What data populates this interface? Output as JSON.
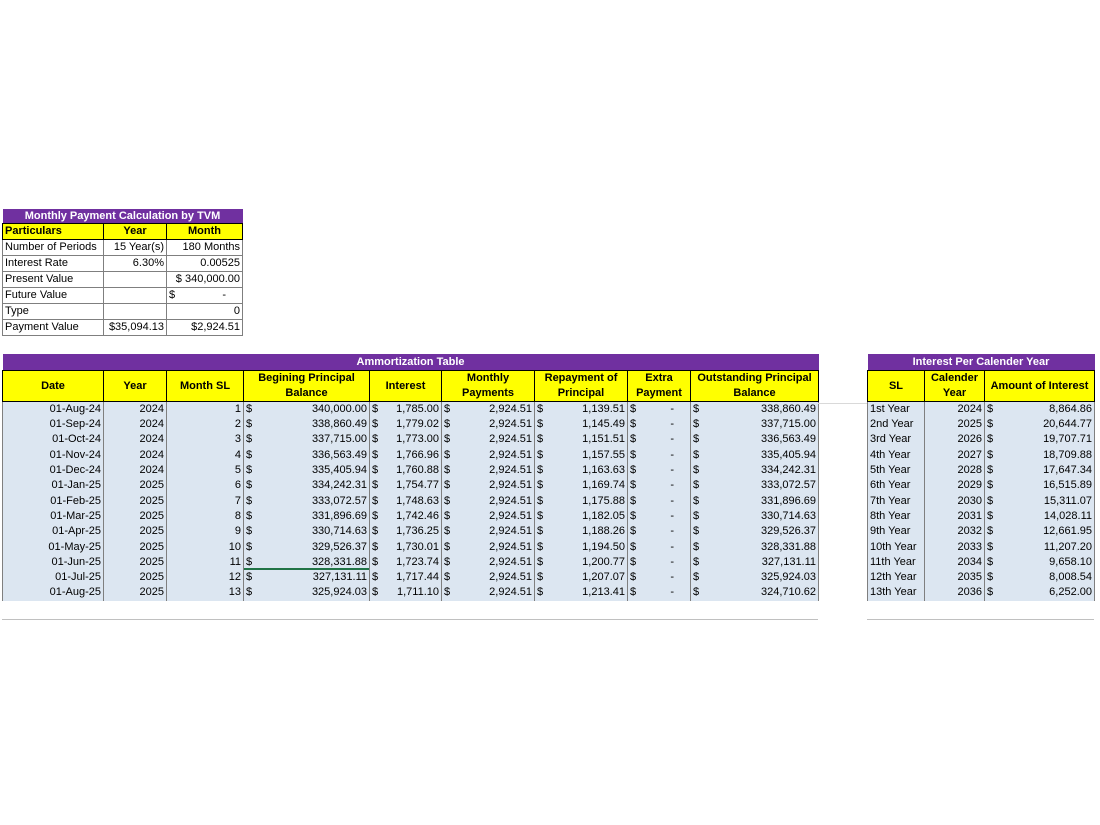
{
  "tvm": {
    "title": "Monthly Payment Calculation by TVM",
    "headers": [
      "Particulars",
      "Year",
      "Month"
    ],
    "rows": [
      {
        "label": "Number of Periods",
        "year": "15 Year(s)",
        "month": "180 Months"
      },
      {
        "label": "Interest Rate",
        "year": "6.30%",
        "month": "0.00525"
      },
      {
        "label": "Present Value",
        "year": "",
        "month": "$ 340,000.00"
      },
      {
        "label": "Future Value",
        "year": "",
        "month_sym": "$",
        "month": "-"
      },
      {
        "label": "Type",
        "year": "",
        "month": "0"
      },
      {
        "label": "Payment Value",
        "year": "$35,094.13",
        "month": "$2,924.51"
      }
    ]
  },
  "amortization": {
    "title": "Ammortization Table",
    "headers": [
      "Date",
      "Year",
      "Month SL",
      "Begining Principal Balance",
      "Interest",
      "Monthly Payments",
      "Repayment of Principal",
      "Extra Payment",
      "Outstanding Principal Balance"
    ],
    "currency": "$",
    "rows": [
      {
        "date": "01-Aug-24",
        "year": "2024",
        "sl": "1",
        "begin": "340,000.00",
        "interest": "1,785.00",
        "payment": "2,924.51",
        "principal": "1,139.51",
        "extra": "-",
        "outstanding": "338,860.49"
      },
      {
        "date": "01-Sep-24",
        "year": "2024",
        "sl": "2",
        "begin": "338,860.49",
        "interest": "1,779.02",
        "payment": "2,924.51",
        "principal": "1,145.49",
        "extra": "-",
        "outstanding": "337,715.00"
      },
      {
        "date": "01-Oct-24",
        "year": "2024",
        "sl": "3",
        "begin": "337,715.00",
        "interest": "1,773.00",
        "payment": "2,924.51",
        "principal": "1,151.51",
        "extra": "-",
        "outstanding": "336,563.49"
      },
      {
        "date": "01-Nov-24",
        "year": "2024",
        "sl": "4",
        "begin": "336,563.49",
        "interest": "1,766.96",
        "payment": "2,924.51",
        "principal": "1,157.55",
        "extra": "-",
        "outstanding": "335,405.94"
      },
      {
        "date": "01-Dec-24",
        "year": "2024",
        "sl": "5",
        "begin": "335,405.94",
        "interest": "1,760.88",
        "payment": "2,924.51",
        "principal": "1,163.63",
        "extra": "-",
        "outstanding": "334,242.31"
      },
      {
        "date": "01-Jan-25",
        "year": "2025",
        "sl": "6",
        "begin": "334,242.31",
        "interest": "1,754.77",
        "payment": "2,924.51",
        "principal": "1,169.74",
        "extra": "-",
        "outstanding": "333,072.57"
      },
      {
        "date": "01-Feb-25",
        "year": "2025",
        "sl": "7",
        "begin": "333,072.57",
        "interest": "1,748.63",
        "payment": "2,924.51",
        "principal": "1,175.88",
        "extra": "-",
        "outstanding": "331,896.69"
      },
      {
        "date": "01-Mar-25",
        "year": "2025",
        "sl": "8",
        "begin": "331,896.69",
        "interest": "1,742.46",
        "payment": "2,924.51",
        "principal": "1,182.05",
        "extra": "-",
        "outstanding": "330,714.63"
      },
      {
        "date": "01-Apr-25",
        "year": "2025",
        "sl": "9",
        "begin": "330,714.63",
        "interest": "1,736.25",
        "payment": "2,924.51",
        "principal": "1,188.26",
        "extra": "-",
        "outstanding": "329,526.37"
      },
      {
        "date": "01-May-25",
        "year": "2025",
        "sl": "10",
        "begin": "329,526.37",
        "interest": "1,730.01",
        "payment": "2,924.51",
        "principal": "1,194.50",
        "extra": "-",
        "outstanding": "328,331.88"
      },
      {
        "date": "01-Jun-25",
        "year": "2025",
        "sl": "11",
        "begin": "328,331.88",
        "interest": "1,723.74",
        "payment": "2,924.51",
        "principal": "1,200.77",
        "extra": "-",
        "outstanding": "327,131.11"
      },
      {
        "date": "01-Jul-25",
        "year": "2025",
        "sl": "12",
        "begin": "327,131.11",
        "interest": "1,717.44",
        "payment": "2,924.51",
        "principal": "1,207.07",
        "extra": "-",
        "outstanding": "325,924.03"
      },
      {
        "date": "01-Aug-25",
        "year": "2025",
        "sl": "13",
        "begin": "325,924.03",
        "interest": "1,711.10",
        "payment": "2,924.51",
        "principal": "1,213.41",
        "extra": "-",
        "outstanding": "324,710.62"
      }
    ]
  },
  "interest_per_year": {
    "title": "Interest Per Calender Year",
    "headers": [
      "SL",
      "Calender Year",
      "Amount of Interest"
    ],
    "currency": "$",
    "rows": [
      {
        "sl": "1st Year",
        "year": "2024",
        "amount": "8,864.86"
      },
      {
        "sl": "2nd Year",
        "year": "2025",
        "amount": "20,644.77"
      },
      {
        "sl": "3rd Year",
        "year": "2026",
        "amount": "19,707.71"
      },
      {
        "sl": "4th Year",
        "year": "2027",
        "amount": "18,709.88"
      },
      {
        "sl": "5th Year",
        "year": "2028",
        "amount": "17,647.34"
      },
      {
        "sl": "6th Year",
        "year": "2029",
        "amount": "16,515.89"
      },
      {
        "sl": "7th Year",
        "year": "2030",
        "amount": "15,311.07"
      },
      {
        "sl": "8th Year",
        "year": "2031",
        "amount": "14,028.11"
      },
      {
        "sl": "9th Year",
        "year": "2032",
        "amount": "12,661.95"
      },
      {
        "sl": "10th Year",
        "year": "2033",
        "amount": "11,207.20"
      },
      {
        "sl": "11th Year",
        "year": "2034",
        "amount": "9,658.10"
      },
      {
        "sl": "12th Year",
        "year": "2035",
        "amount": "8,008.54"
      },
      {
        "sl": "13th Year",
        "year": "2036",
        "amount": "6,252.00"
      }
    ]
  },
  "colors": {
    "header_bg": "#7030a0",
    "subheader_bg": "#ffff00",
    "row_bg": "#dce6f1",
    "selection": "#217346"
  }
}
